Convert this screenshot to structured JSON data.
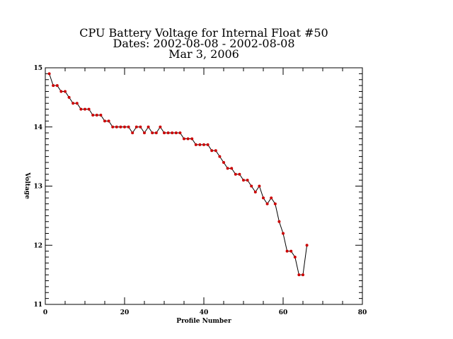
{
  "chart_data": {
    "type": "line",
    "title": [
      "CPU Battery Voltage for Internal Float #50",
      "Dates:  2002-08-08 -  2002-08-08",
      "Mar  3, 2006"
    ],
    "xlabel": "Profile Number",
    "ylabel": "Voltage",
    "xlim": [
      0,
      80
    ],
    "ylim": [
      11,
      15
    ],
    "x_ticks": [
      0,
      20,
      40,
      60,
      80
    ],
    "y_ticks": [
      11,
      12,
      13,
      14,
      15
    ],
    "x_tick_labels": [
      "0",
      "20",
      "40",
      "60",
      "80"
    ],
    "y_tick_labels": [
      "11",
      "12",
      "13",
      "14",
      "15"
    ],
    "grid": false,
    "line_color": "#000000",
    "marker_color": "#cc0000",
    "series": [
      {
        "x": [
          1,
          2,
          3,
          4,
          5,
          6,
          7,
          8,
          9,
          10,
          11,
          12,
          13,
          14,
          15,
          16,
          17,
          18,
          19,
          20,
          21,
          22,
          23,
          24,
          25,
          26,
          27,
          28,
          29,
          30,
          31,
          32,
          33,
          34,
          35,
          36,
          37,
          38,
          39,
          40,
          41,
          42,
          43,
          44,
          45,
          46,
          47,
          48,
          49,
          50,
          51,
          52,
          53,
          54,
          55,
          56,
          57,
          58,
          59,
          60,
          61,
          62,
          63,
          64,
          65,
          66
        ],
        "values": [
          14.9,
          14.7,
          14.7,
          14.6,
          14.6,
          14.5,
          14.4,
          14.4,
          14.3,
          14.3,
          14.3,
          14.2,
          14.2,
          14.2,
          14.1,
          14.1,
          14.0,
          14.0,
          14.0,
          14.0,
          14.0,
          13.9,
          14.0,
          14.0,
          13.9,
          14.0,
          13.9,
          13.9,
          14.0,
          13.9,
          13.9,
          13.9,
          13.9,
          13.9,
          13.8,
          13.8,
          13.8,
          13.7,
          13.7,
          13.7,
          13.7,
          13.6,
          13.6,
          13.5,
          13.4,
          13.3,
          13.3,
          13.2,
          13.2,
          13.1,
          13.1,
          13.0,
          12.9,
          13.0,
          12.8,
          12.7,
          12.8,
          12.7,
          12.4,
          12.2,
          11.9,
          11.9,
          11.8,
          11.5,
          11.5,
          12.0
        ]
      }
    ]
  }
}
